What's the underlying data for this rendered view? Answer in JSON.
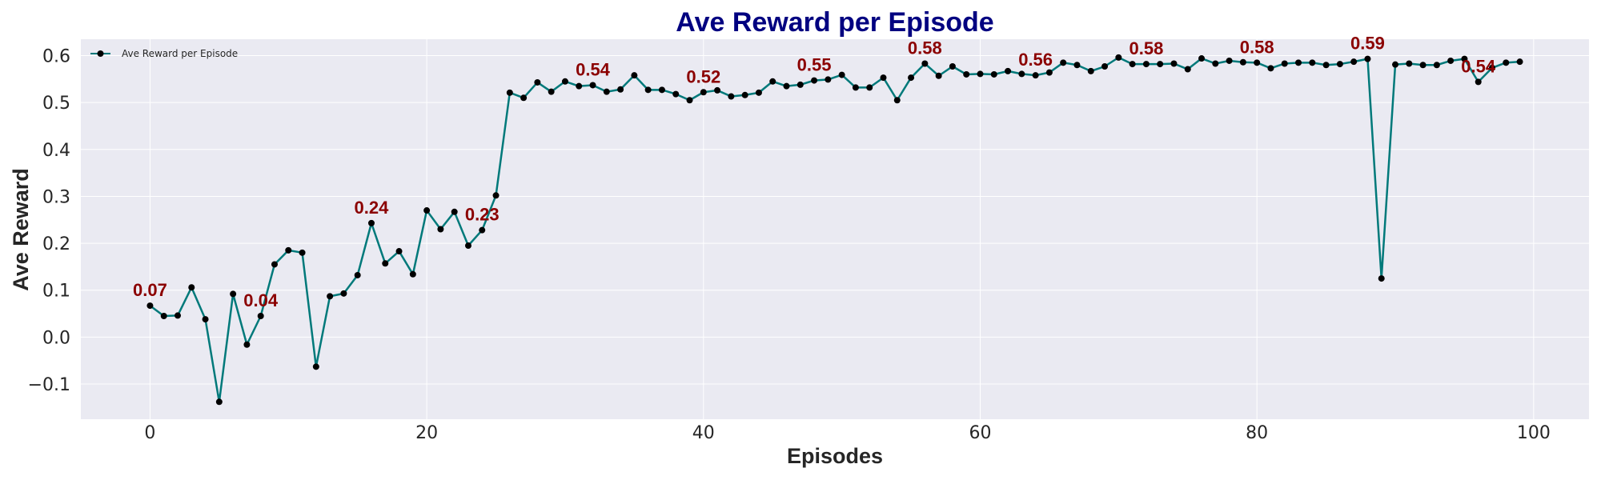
{
  "chart_data": {
    "type": "line",
    "title": "Ave Reward per Episode",
    "xlabel": "Episodes",
    "ylabel": "Ave Reward",
    "xlim": [
      -5,
      104
    ],
    "ylim": [
      -0.175,
      0.635
    ],
    "xticks": [
      0,
      20,
      40,
      60,
      80,
      100
    ],
    "yticks": [
      -0.1,
      0.0,
      0.1,
      0.2,
      0.3,
      0.4,
      0.5,
      0.6
    ],
    "ytick_labels": [
      "−0.1",
      "0.0",
      "0.1",
      "0.2",
      "0.3",
      "0.4",
      "0.5",
      "0.6"
    ],
    "grid": true,
    "legend_position": "top-left",
    "line_color": "#00797a",
    "marker_color": "#000000",
    "annotation_color": "#8b0000",
    "background_color": "#eaeaf2",
    "series": [
      {
        "name": "Ave Reward per Episode",
        "x": [
          0,
          1,
          2,
          3,
          4,
          5,
          6,
          7,
          8,
          9,
          10,
          11,
          12,
          13,
          14,
          15,
          16,
          17,
          18,
          19,
          20,
          21,
          22,
          23,
          24,
          25,
          26,
          27,
          28,
          29,
          30,
          31,
          32,
          33,
          34,
          35,
          36,
          37,
          38,
          39,
          40,
          41,
          42,
          43,
          44,
          45,
          46,
          47,
          48,
          49,
          50,
          51,
          52,
          53,
          54,
          55,
          56,
          57,
          58,
          59,
          60,
          61,
          62,
          63,
          64,
          65,
          66,
          67,
          68,
          69,
          70,
          71,
          72,
          73,
          74,
          75,
          76,
          77,
          78,
          79,
          80,
          81,
          82,
          83,
          84,
          85,
          86,
          87,
          88,
          89,
          90,
          91,
          92,
          93,
          94,
          95,
          96,
          97,
          98,
          99
        ],
        "values": [
          0.067,
          0.045,
          0.046,
          0.106,
          0.038,
          -0.138,
          0.092,
          -0.016,
          0.045,
          0.155,
          0.185,
          0.18,
          -0.063,
          0.087,
          0.093,
          0.132,
          0.243,
          0.157,
          0.183,
          0.134,
          0.27,
          0.23,
          0.267,
          0.195,
          0.228,
          0.302,
          0.521,
          0.51,
          0.543,
          0.523,
          0.545,
          0.535,
          0.537,
          0.523,
          0.528,
          0.558,
          0.527,
          0.527,
          0.518,
          0.505,
          0.522,
          0.526,
          0.513,
          0.516,
          0.521,
          0.545,
          0.535,
          0.538,
          0.547,
          0.549,
          0.559,
          0.532,
          0.532,
          0.553,
          0.505,
          0.553,
          0.583,
          0.557,
          0.577,
          0.56,
          0.561,
          0.56,
          0.567,
          0.561,
          0.558,
          0.564,
          0.585,
          0.58,
          0.567,
          0.577,
          0.596,
          0.582,
          0.582,
          0.582,
          0.583,
          0.571,
          0.594,
          0.583,
          0.589,
          0.586,
          0.585,
          0.573,
          0.583,
          0.585,
          0.585,
          0.58,
          0.582,
          0.587,
          0.593,
          0.125,
          0.581,
          0.583,
          0.58,
          0.58,
          0.589,
          0.593,
          0.544,
          0.574,
          0.585,
          0.587
        ]
      }
    ],
    "annotations": [
      {
        "text": "0.07",
        "x": 0,
        "y": 0.067
      },
      {
        "text": "0.04",
        "x": 8,
        "y": 0.045
      },
      {
        "text": "0.24",
        "x": 16,
        "y": 0.243
      },
      {
        "text": "0.23",
        "x": 24,
        "y": 0.228
      },
      {
        "text": "0.54",
        "x": 32,
        "y": 0.537
      },
      {
        "text": "0.52",
        "x": 40,
        "y": 0.522
      },
      {
        "text": "0.55",
        "x": 48,
        "y": 0.547
      },
      {
        "text": "0.58",
        "x": 56,
        "y": 0.583
      },
      {
        "text": "0.56",
        "x": 64,
        "y": 0.558
      },
      {
        "text": "0.58",
        "x": 72,
        "y": 0.582
      },
      {
        "text": "0.58",
        "x": 80,
        "y": 0.585
      },
      {
        "text": "0.59",
        "x": 88,
        "y": 0.593
      },
      {
        "text": "0.54",
        "x": 96,
        "y": 0.544
      }
    ]
  }
}
